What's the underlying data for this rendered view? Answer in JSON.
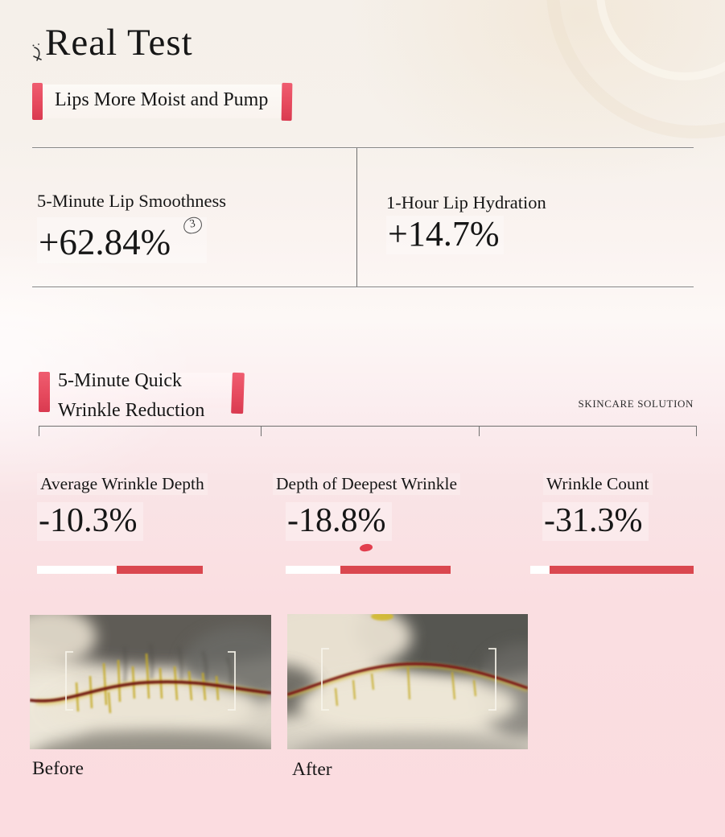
{
  "header": {
    "title": "Real Test"
  },
  "watermark": "SKINCARE SOLUTION",
  "banners": {
    "lips": "Lips More Moist and Pump",
    "wrinkle_line1": "5-Minute Quick",
    "wrinkle_line2": "Wrinkle Reduction"
  },
  "lip_stats": [
    {
      "label": "5-Minute Lip Smoothness",
      "value": "+62.84%",
      "footnote": "3"
    },
    {
      "label": "1-Hour Lip Hydration",
      "value": "+14.7%"
    }
  ],
  "wrinkle_stats": [
    {
      "label": "Average Wrinkle Depth",
      "value": "-10.3%",
      "bar_white_pct": 48,
      "bar_red_pct": 52
    },
    {
      "label": "Depth of Deepest Wrinkle",
      "value": "-18.8%",
      "bar_white_pct": 33,
      "bar_red_pct": 67
    },
    {
      "label": "Wrinkle Count",
      "value": "-31.3%",
      "bar_white_pct": 12,
      "bar_red_pct": 88
    }
  ],
  "comparison": {
    "before": "Before",
    "after": "After"
  },
  "colors": {
    "accent_red": "#e64a5e",
    "progress_red": "#da474f",
    "line_gray": "#848484",
    "background_top": "#f5f0ea",
    "background_bottom": "#fbdce0"
  }
}
